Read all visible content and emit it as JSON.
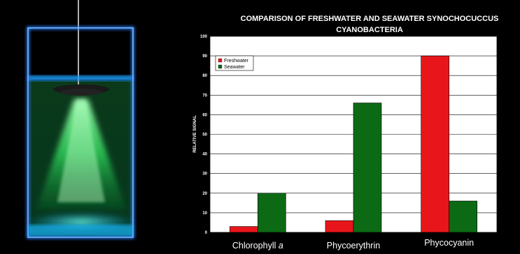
{
  "chart_data": {
    "type": "bar",
    "title_line1": "COMPARISON OF FRESHWATER AND SEAWATER SYNOCHOCUCCUS",
    "title_line2": "CYANOBACTERIA",
    "ylabel": "RELATIVE SIGNAL",
    "xlabel": "",
    "ylim": [
      0,
      100
    ],
    "yticks": [
      "0",
      "10",
      "20",
      "30",
      "40",
      "50",
      "60",
      "70",
      "80",
      "90",
      "100"
    ],
    "categories": [
      "Chlorophyll",
      "Phycoerythrin",
      "Phycocyanin"
    ],
    "category_suffix": [
      "a",
      "",
      ""
    ],
    "series": [
      {
        "name": "Freshwater",
        "values": [
          3,
          6,
          90
        ],
        "color": "#e8161a"
      },
      {
        "name": "Seawater",
        "values": [
          20,
          66,
          16
        ],
        "color": "#0d6a14"
      }
    ],
    "grid": true,
    "legend_position": "top-left",
    "plot_background": "#ffffff"
  }
}
